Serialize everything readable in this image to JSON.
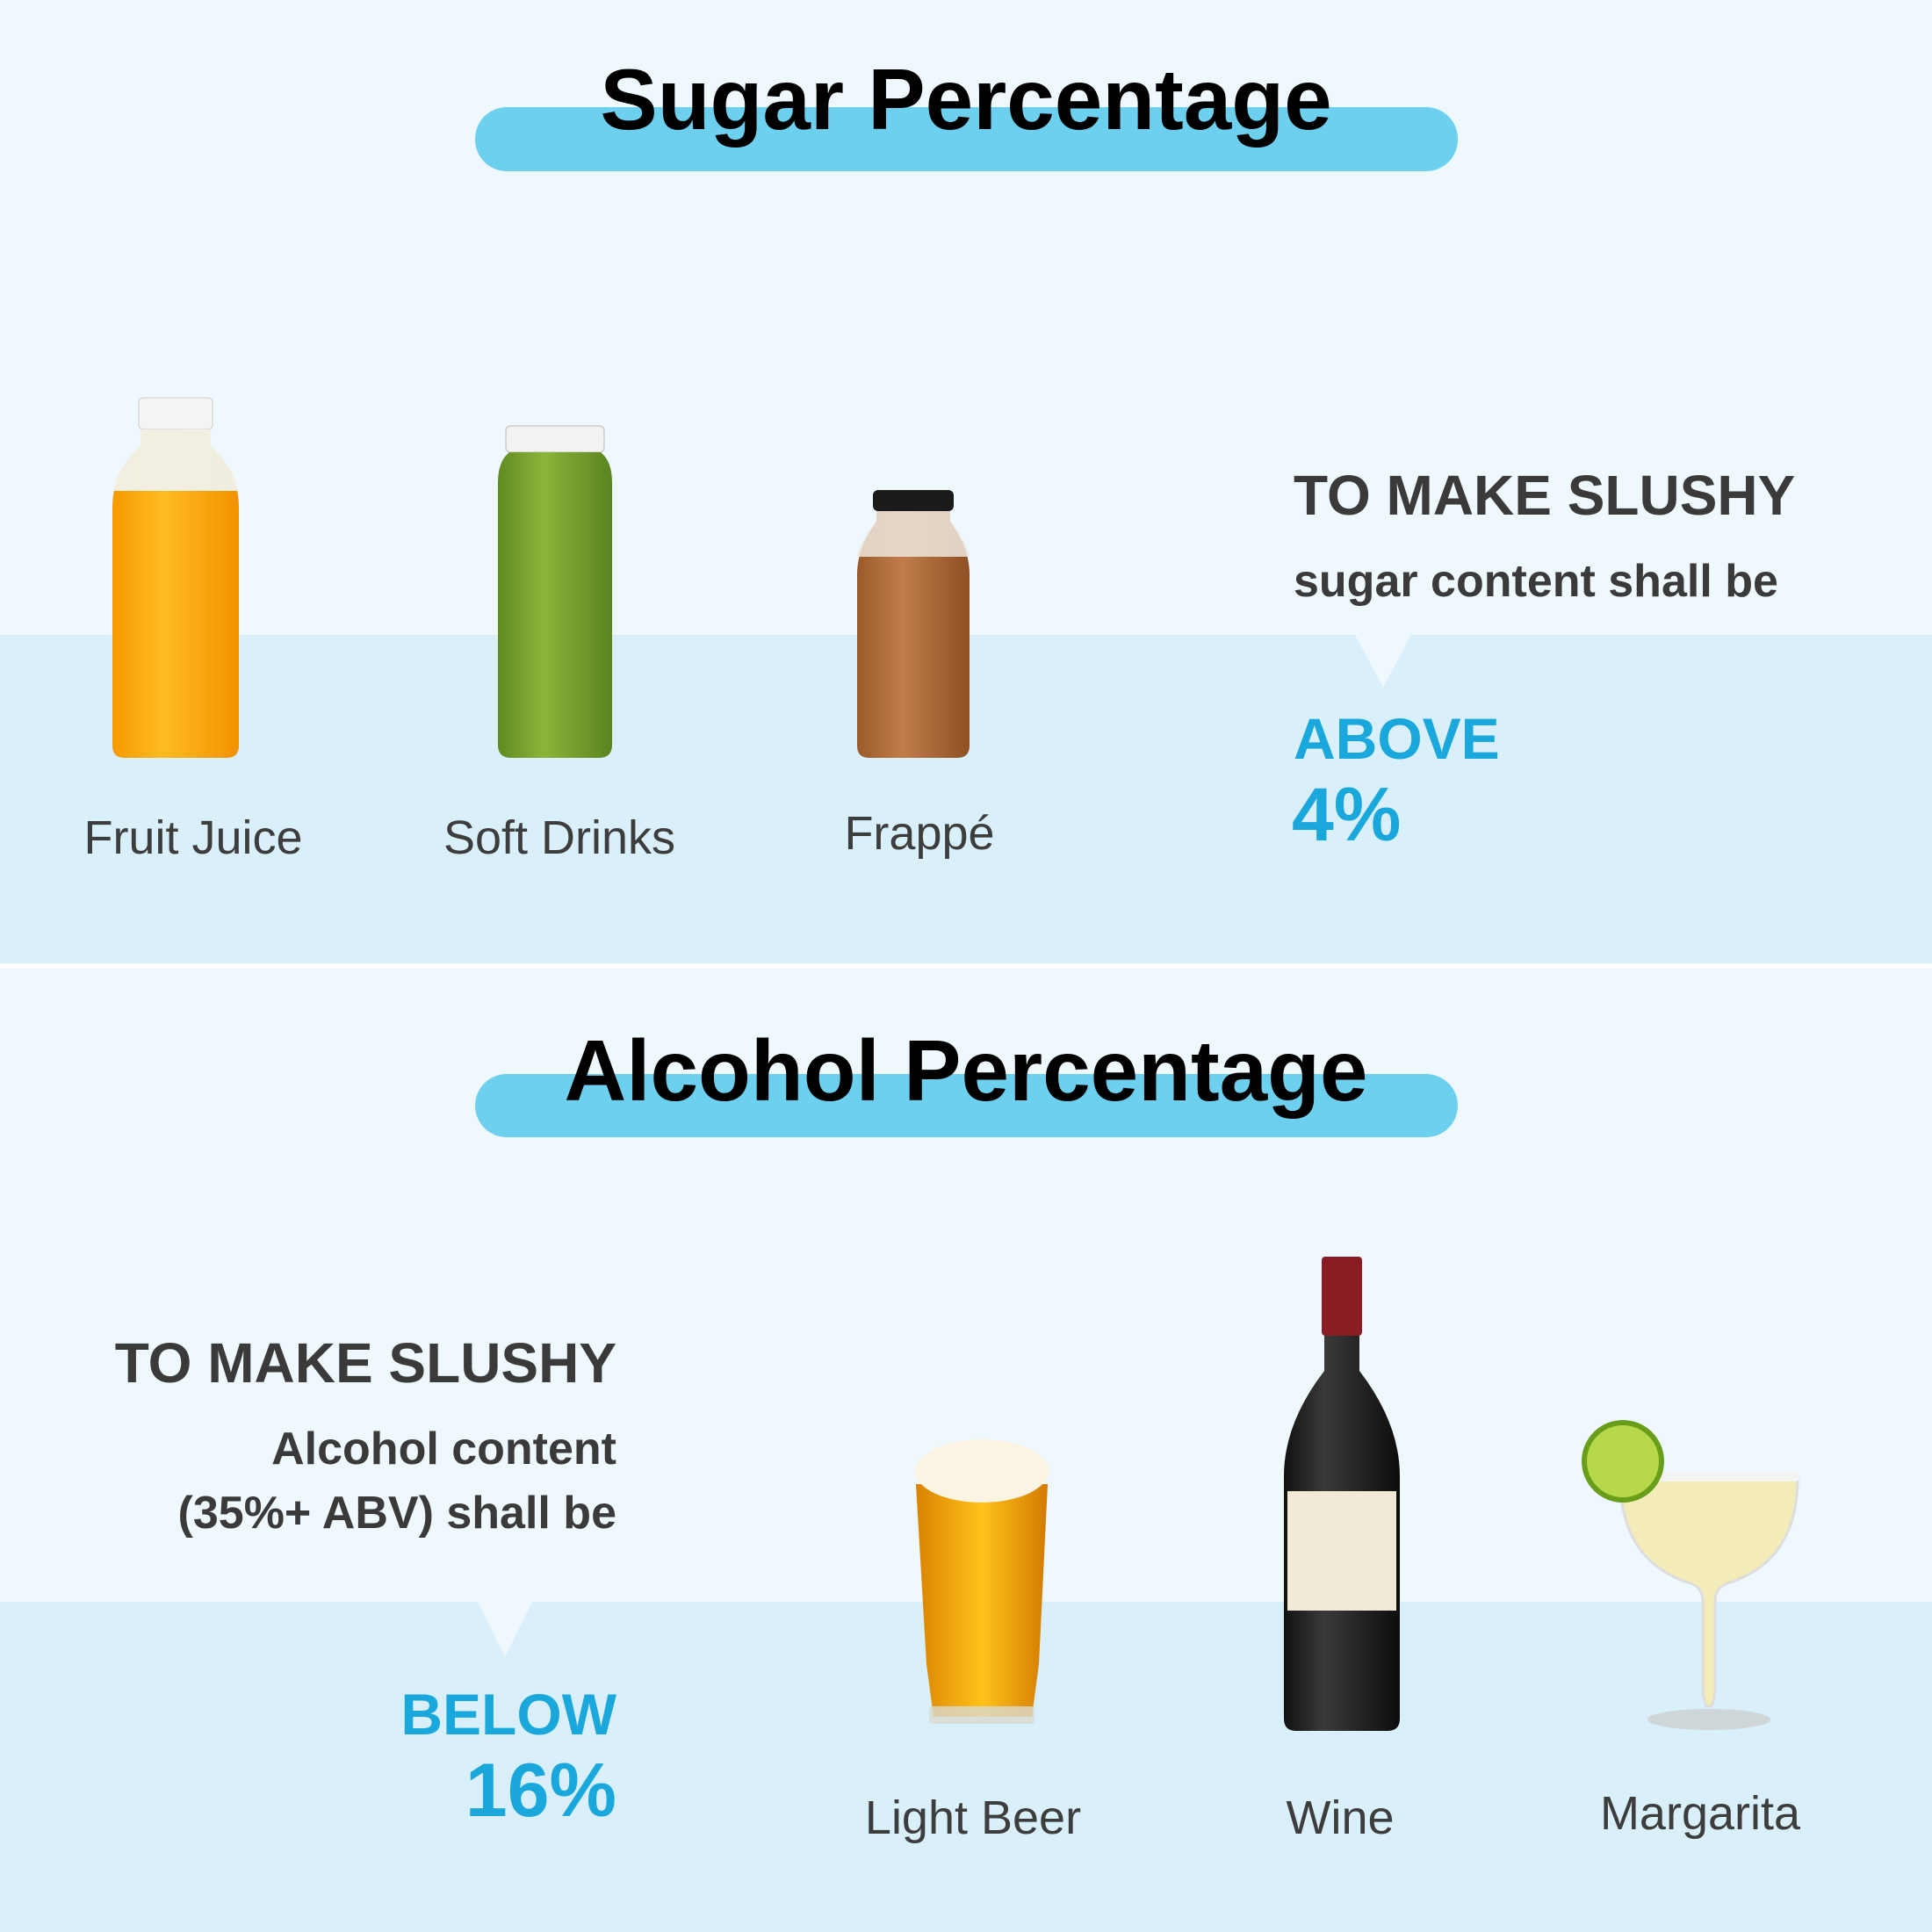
{
  "sections": [
    {
      "title": "Sugar Percentage",
      "items": [
        "Fruit Juice",
        "Soft Drinks",
        "Frappé"
      ],
      "note": {
        "heading": "TO MAKE SLUSHY",
        "lines": [
          "sugar content shall be"
        ],
        "qualifier": "ABOVE",
        "value": "4%"
      }
    },
    {
      "title": "Alcohol Percentage",
      "items": [
        "Light Beer",
        "Wine",
        "Margarita"
      ],
      "note": {
        "heading": "TO MAKE SLUSHY",
        "lines": [
          "Alcohol content",
          "(35%+ ABV) shall be"
        ],
        "qualifier": "BELOW",
        "value": "16%"
      }
    }
  ]
}
